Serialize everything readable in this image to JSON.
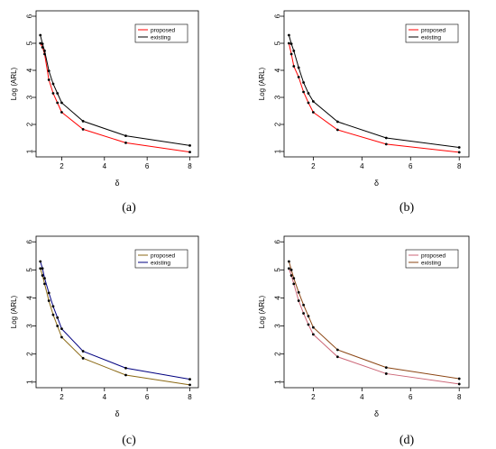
{
  "figure": {
    "panel_labels": [
      "(a)",
      "(b)",
      "(c)",
      "(d)"
    ]
  },
  "chart_data": [
    {
      "type": "line",
      "panel": "(a)",
      "xlabel": "δ",
      "ylabel": "Log (ARL)",
      "xlim": [
        0.8,
        8.4
      ],
      "ylim": [
        0.8,
        6.2
      ],
      "xticks": [
        2,
        4,
        6,
        8
      ],
      "yticks": [
        1,
        2,
        3,
        4,
        5,
        6
      ],
      "legend_position": "top-right",
      "x": [
        1.0,
        1.1,
        1.2,
        1.4,
        1.6,
        1.8,
        2.0,
        3.0,
        5.0,
        8.0
      ],
      "series": [
        {
          "name": "proposed",
          "color": "#ff0000",
          "values": [
            5.0,
            4.85,
            4.6,
            3.65,
            3.15,
            2.8,
            2.45,
            1.82,
            1.32,
            0.98
          ]
        },
        {
          "name": "existing",
          "color": "#000000",
          "values": [
            5.3,
            4.98,
            4.72,
            3.98,
            3.5,
            3.15,
            2.8,
            2.12,
            1.58,
            1.22
          ]
        }
      ]
    },
    {
      "type": "line",
      "panel": "(b)",
      "xlabel": "δ",
      "ylabel": "Log (ARL)",
      "xlim": [
        0.8,
        8.4
      ],
      "ylim": [
        0.8,
        6.2
      ],
      "xticks": [
        2,
        4,
        6,
        8
      ],
      "yticks": [
        1,
        2,
        3,
        4,
        5,
        6
      ],
      "legend_position": "top-right",
      "x": [
        1.0,
        1.1,
        1.2,
        1.4,
        1.6,
        1.8,
        2.0,
        3.0,
        5.0,
        8.0
      ],
      "series": [
        {
          "name": "proposed",
          "color": "#ff0000",
          "values": [
            5.0,
            4.6,
            4.15,
            3.75,
            3.2,
            2.8,
            2.45,
            1.8,
            1.27,
            0.97
          ]
        },
        {
          "name": "existing",
          "color": "#000000",
          "values": [
            5.3,
            4.98,
            4.72,
            4.1,
            3.55,
            3.15,
            2.85,
            2.1,
            1.5,
            1.15
          ]
        }
      ]
    },
    {
      "type": "line",
      "panel": "(c)",
      "xlabel": "δ",
      "ylabel": "Log (ARL)",
      "xlim": [
        0.8,
        8.4
      ],
      "ylim": [
        0.8,
        6.2
      ],
      "xticks": [
        2,
        4,
        6,
        8
      ],
      "yticks": [
        1,
        2,
        3,
        4,
        5,
        6
      ],
      "legend_position": "top-right",
      "x": [
        1.0,
        1.1,
        1.2,
        1.4,
        1.6,
        1.8,
        2.0,
        3.0,
        5.0,
        8.0
      ],
      "series": [
        {
          "name": "proposed",
          "color": "#8b6914",
          "values": [
            5.05,
            4.8,
            4.5,
            3.9,
            3.4,
            3.0,
            2.6,
            1.85,
            1.25,
            0.9
          ]
        },
        {
          "name": "existing",
          "color": "#000080",
          "values": [
            5.3,
            5.05,
            4.7,
            4.18,
            3.7,
            3.3,
            2.9,
            2.1,
            1.5,
            1.1
          ]
        }
      ]
    },
    {
      "type": "line",
      "panel": "(d)",
      "xlabel": "δ",
      "ylabel": "Log (ARL)",
      "xlim": [
        0.8,
        8.4
      ],
      "ylim": [
        0.8,
        6.2
      ],
      "xticks": [
        2,
        4,
        6,
        8
      ],
      "yticks": [
        1,
        2,
        3,
        4,
        5,
        6
      ],
      "legend_position": "top-right",
      "x": [
        1.0,
        1.1,
        1.2,
        1.4,
        1.6,
        1.8,
        2.0,
        3.0,
        5.0,
        8.0
      ],
      "series": [
        {
          "name": "proposed",
          "color": "#cc6677",
          "values": [
            5.05,
            4.8,
            4.5,
            3.9,
            3.45,
            3.05,
            2.7,
            1.9,
            1.3,
            0.93
          ]
        },
        {
          "name": "existing",
          "color": "#8b4513",
          "values": [
            5.3,
            5.0,
            4.7,
            4.2,
            3.75,
            3.35,
            2.95,
            2.15,
            1.52,
            1.12
          ]
        }
      ]
    }
  ]
}
